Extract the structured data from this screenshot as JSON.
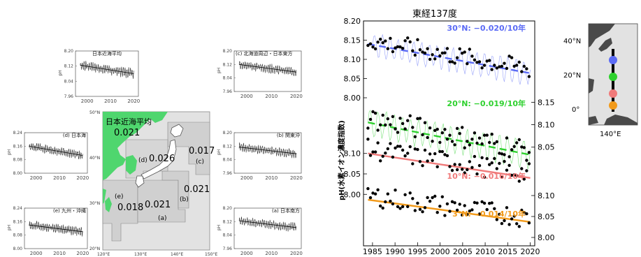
{
  "colors": {
    "land": "#4fd66e",
    "sea": "#e2e2e2",
    "box": "#d3d3d3",
    "blue": "#5b6bf5",
    "green": "#2ed12e",
    "pink": "#f07a7a",
    "orange": "#f29a1a",
    "tick": "#444444"
  },
  "chart_data": [
    {
      "type": "line",
      "id": "a",
      "title": "(a) 日本南方",
      "ylabel": "pH",
      "yticks": [
        "7.96",
        "8.04",
        "8.12",
        "8.20"
      ],
      "xticks": [
        "2000",
        "2010",
        "2020"
      ],
      "trend": [
        8.125,
        8.085
      ]
    },
    {
      "type": "line",
      "id": "b",
      "title": "(b) 関東沖",
      "ylabel": "pH",
      "yticks": [
        "7.96",
        "8.04",
        "8.12",
        "8.20"
      ],
      "xticks": [
        "2000",
        "2010",
        "2020"
      ],
      "trend": [
        8.115,
        8.075
      ]
    },
    {
      "type": "line",
      "id": "c",
      "title": "(c) 北海道周辺・日本東方",
      "ylabel": "pH",
      "yticks": [
        "7.96",
        "8.04",
        "8.12",
        "8.20"
      ],
      "xticks": [
        "2000",
        "2010",
        "2020"
      ],
      "trend": [
        8.12,
        8.075
      ]
    },
    {
      "type": "line",
      "id": "d",
      "title": "(d) 日本海",
      "ylabel": "pH",
      "yticks": [
        "8.00",
        "8.08",
        "8.16",
        "8.24"
      ],
      "xticks": [
        "2000",
        "2010",
        "2020"
      ],
      "trend": [
        8.16,
        8.105
      ]
    },
    {
      "type": "line",
      "id": "e",
      "title": "(e) 九州・沖縄",
      "ylabel": "pH",
      "yticks": [
        "8.00",
        "8.08",
        "8.16",
        "8.24"
      ],
      "xticks": [
        "2000",
        "2010",
        "2020"
      ],
      "trend": [
        8.14,
        8.1
      ]
    },
    {
      "type": "line",
      "id": "avg",
      "title": "日本近海平均",
      "ylabel": "pH",
      "yticks": [
        "7.96",
        "8.04",
        "8.12",
        "8.20"
      ],
      "xticks": [
        "2000",
        "2010",
        "2020"
      ],
      "trend": [
        8.125,
        8.08
      ]
    },
    {
      "type": "map",
      "title": "日本近海平均",
      "average": "0.021",
      "regions": [
        {
          "id": "a",
          "label": "(a)",
          "value": "0.021"
        },
        {
          "id": "b",
          "label": "(b)",
          "value": "0.021"
        },
        {
          "id": "c",
          "label": "(c)",
          "value": "0.017"
        },
        {
          "id": "d",
          "label": "(d)",
          "value": "0.026"
        },
        {
          "id": "e",
          "label": "(e)",
          "value": "0.018"
        }
      ],
      "xticks": [
        "120°E",
        "130°E",
        "140°E",
        "150°E"
      ],
      "yticks": [
        "20°N",
        "30°N",
        "40°N",
        "50°N"
      ]
    },
    {
      "type": "scatter",
      "title": "東経137度",
      "ylabel": "pH(水素イオン濃度指数)",
      "xlim": [
        1983,
        2021
      ],
      "xticks": [
        "1985",
        "1990",
        "1995",
        "2000",
        "2005",
        "2010",
        "2015",
        "2020"
      ],
      "series": [
        {
          "name": "30°N: −0.020/10年",
          "color": "blue",
          "trend": [
            8.14,
            8.064
          ],
          "yticks": [
            "8.00",
            "8.05",
            "8.10",
            "8.15",
            "8.20"
          ],
          "tickside": "left"
        },
        {
          "name": "20°N: −0.019/10年",
          "color": "green",
          "trend": [
            8.105,
            8.033
          ],
          "yticks": [
            "8.05",
            "8.10",
            "8.15"
          ],
          "tickside": "right"
        },
        {
          "name": "10°N: −0.016/10年",
          "color": "pink",
          "trend": [
            8.1,
            8.04
          ],
          "yticks": [
            "8.00",
            "8.05",
            "8.10"
          ],
          "tickside": "left"
        },
        {
          "name": "3°N: −0.014/10年",
          "color": "orange",
          "trend": [
            8.09,
            8.037
          ],
          "yticks": [
            "8.00",
            "8.05",
            "8.10"
          ],
          "tickside": "right"
        }
      ]
    },
    {
      "type": "map",
      "title": "",
      "xticks": [
        "140°E"
      ],
      "yticks": [
        "0°",
        "20°N",
        "40°N"
      ],
      "stations": [
        "30°N",
        "20°N",
        "10°N",
        "3°N"
      ]
    }
  ]
}
